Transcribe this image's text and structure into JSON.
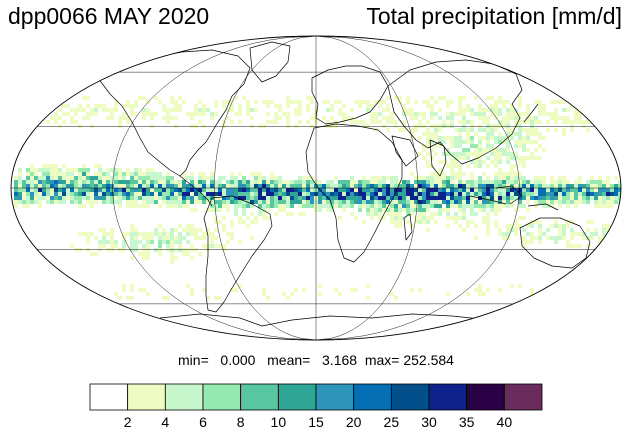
{
  "title_left": "dpp0066 MAY 2020",
  "title_right": "Total precipitation [mm/d]",
  "stats": {
    "min_label": "min=",
    "min": "0.000",
    "mean_label": "mean=",
    "mean": "3.168",
    "max_label": "max=",
    "max": "252.584"
  },
  "projection": "mollweide",
  "graticule": {
    "latitudes": [
      -60,
      -30,
      0,
      30,
      60
    ],
    "longitudes": [
      -120,
      -60,
      0,
      60,
      120
    ]
  },
  "colorbar": {
    "ticks": [
      "2",
      "4",
      "6",
      "8",
      "10",
      "15",
      "20",
      "25",
      "30",
      "35",
      "40"
    ],
    "colors": [
      "#ffffff",
      "#eefcc4",
      "#c8f7cd",
      "#95e9b1",
      "#58c6a0",
      "#2ea595",
      "#2f94b9",
      "#066fb3",
      "#034f8c",
      "#0f218a",
      "#290144",
      "#6a2c5c"
    ]
  },
  "colors": {
    "land_coast": "#000000",
    "grid": "#000000",
    "dry": "#ffffff"
  }
}
